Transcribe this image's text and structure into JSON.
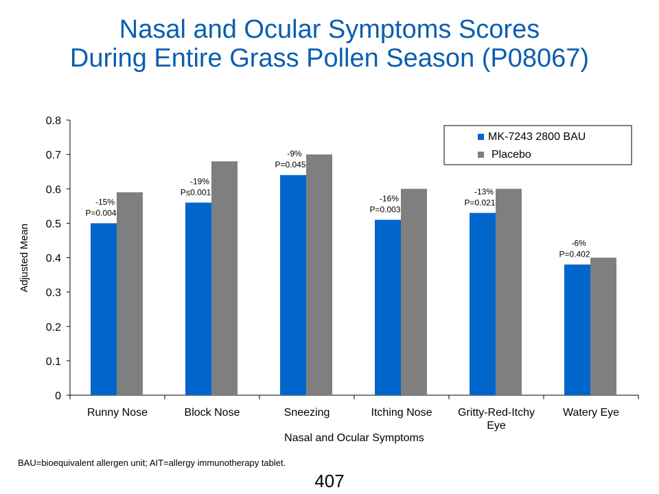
{
  "slide": {
    "title_line1": "Nasal and Ocular Symptoms Scores",
    "title_line2": "During Entire Grass Pollen Season (P08067)",
    "footnote": "BAU=bioequivalent allergen unit; AIT=allergy  immunotherapy tablet.",
    "page_number": "407"
  },
  "colors": {
    "title": "#0a5eb0",
    "treatment": "#0066cc",
    "placebo": "#7f7f7f"
  },
  "chart_data": {
    "type": "bar",
    "title": "",
    "xlabel": "Nasal and Ocular Symptoms",
    "ylabel": "Adjusted Mean",
    "ylim": [
      0,
      0.8
    ],
    "yticks": [
      "0",
      "0.1",
      "0.2",
      "0.3",
      "0.4",
      "0.5",
      "0.6",
      "0.7",
      "0.8"
    ],
    "categories": [
      "Runny Nose",
      "Block Nose",
      "Sneezing",
      "Itching Nose",
      "Gritty-Red-Itchy Eye",
      "Watery Eye"
    ],
    "series": [
      {
        "name": "MK-7243 2800 BAU",
        "values": [
          0.5,
          0.56,
          0.64,
          0.51,
          0.53,
          0.38
        ]
      },
      {
        "name": "Placebo",
        "values": [
          0.59,
          0.68,
          0.7,
          0.6,
          0.6,
          0.4
        ]
      }
    ],
    "annotations": [
      {
        "pct": "-15%",
        "p": "P=0.004"
      },
      {
        "pct": "-19%",
        "p": "P≤0.001"
      },
      {
        "pct": "-9%",
        "p": "P=0.045"
      },
      {
        "pct": "-16%",
        "p": "P=0.003"
      },
      {
        "pct": "-13%",
        "p": "P=0.021"
      },
      {
        "pct": "-6%",
        "p": "P=0.402"
      }
    ],
    "legend_position": "top-right",
    "grid": false
  }
}
